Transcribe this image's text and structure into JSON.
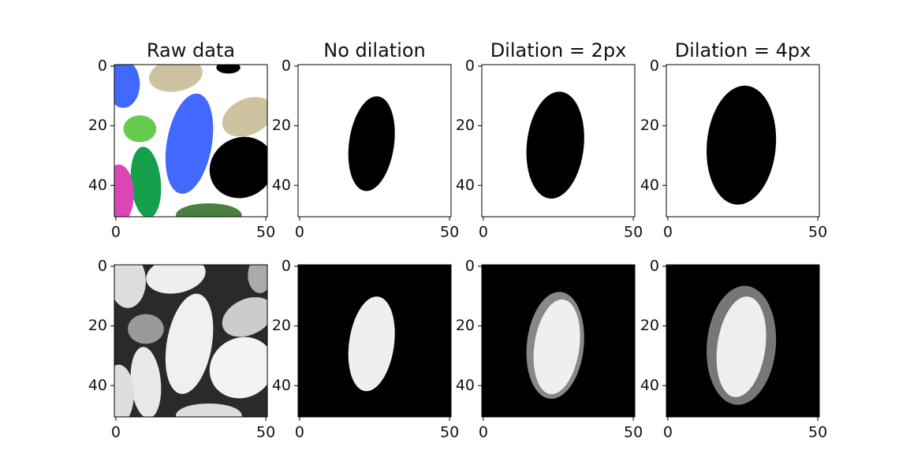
{
  "chart_data": [
    {
      "type": "image",
      "title": "Raw data",
      "xlim": [
        -0.5,
        50.5
      ],
      "ylim": [
        50.5,
        -0.5
      ],
      "xticks": [
        0,
        50
      ],
      "yticks": [
        0,
        20,
        40
      ]
    },
    {
      "type": "image",
      "title": "No dilation",
      "xlim": [
        -0.5,
        50.5
      ],
      "ylim": [
        50.5,
        -0.5
      ],
      "xticks": [
        0,
        50
      ],
      "yticks": [
        0,
        20,
        40
      ]
    },
    {
      "type": "image",
      "title": "Dilation = 2px",
      "xlim": [
        -0.5,
        50.5
      ],
      "ylim": [
        50.5,
        -0.5
      ],
      "xticks": [
        0,
        50
      ],
      "yticks": [
        0,
        20,
        40
      ]
    },
    {
      "type": "image",
      "title": "Dilation = 4px",
      "xlim": [
        -0.5,
        50.5
      ],
      "ylim": [
        50.5,
        -0.5
      ],
      "xticks": [
        0,
        50
      ],
      "yticks": [
        0,
        20,
        40
      ]
    },
    {
      "type": "image",
      "xlim": [
        -0.5,
        50.5
      ],
      "ylim": [
        50.5,
        -0.5
      ],
      "xticks": [
        0,
        50
      ],
      "yticks": [
        0,
        20,
        40
      ]
    },
    {
      "type": "image",
      "xlim": [
        -0.5,
        50.5
      ],
      "ylim": [
        50.5,
        -0.5
      ],
      "xticks": [
        0,
        50
      ],
      "yticks": [
        0,
        20,
        40
      ]
    },
    {
      "type": "image",
      "xlim": [
        -0.5,
        50.5
      ],
      "ylim": [
        50.5,
        -0.5
      ],
      "xticks": [
        0,
        50
      ],
      "yticks": [
        0,
        20,
        40
      ]
    },
    {
      "type": "image",
      "xlim": [
        -0.5,
        50.5
      ],
      "ylim": [
        50.5,
        -0.5
      ],
      "xticks": [
        0,
        50
      ],
      "yticks": [
        0,
        20,
        40
      ]
    }
  ]
}
